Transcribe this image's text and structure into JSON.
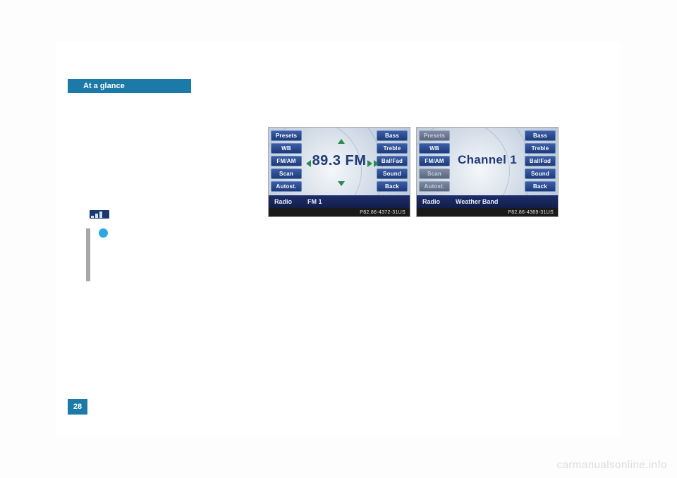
{
  "page": {
    "header_title": "At a glance",
    "page_number": "28",
    "watermark": "carmanualsonline.info"
  },
  "colors": {
    "header_bg": "#1b7aa8",
    "header_text": "#ffffff",
    "info_dot": "#2aa9e0",
    "info_bar": "#a8a8a8",
    "page_bg": "#ffffff",
    "body_bg": "#fdfdfd"
  },
  "screenshot1": {
    "left_buttons": [
      "Presets",
      "WB",
      "FM/AM",
      "Scan",
      "Autost."
    ],
    "right_buttons": [
      "Bass",
      "Treble",
      "Bal/Fad",
      "Sound",
      "Back"
    ],
    "center_text": "89.3 FM",
    "status_label": "Radio",
    "status_value": "FM 1",
    "footer_code": "P82.86-4372-31US",
    "disabled_left": [],
    "button_bg": "#1f3b78",
    "button_text": "#ffffff",
    "status_bg": "#131f4a",
    "arrow_color": "#2a8a4a",
    "center_text_color": "#1f3b78"
  },
  "screenshot2": {
    "left_buttons": [
      "Presets",
      "WB",
      "FM/AM",
      "Scan",
      "Autost."
    ],
    "right_buttons": [
      "Bass",
      "Treble",
      "Bal/Fad",
      "Sound",
      "Back"
    ],
    "center_text": "Channel 1",
    "status_label": "Radio",
    "status_value": "Weather Band",
    "footer_code": "P82.86-4369-31US",
    "disabled_left": [
      "Presets",
      "Scan",
      "Autost."
    ],
    "button_bg": "#1f3b78",
    "button_text": "#ffffff",
    "status_bg": "#131f4a",
    "center_text_color": "#1f3b78"
  }
}
